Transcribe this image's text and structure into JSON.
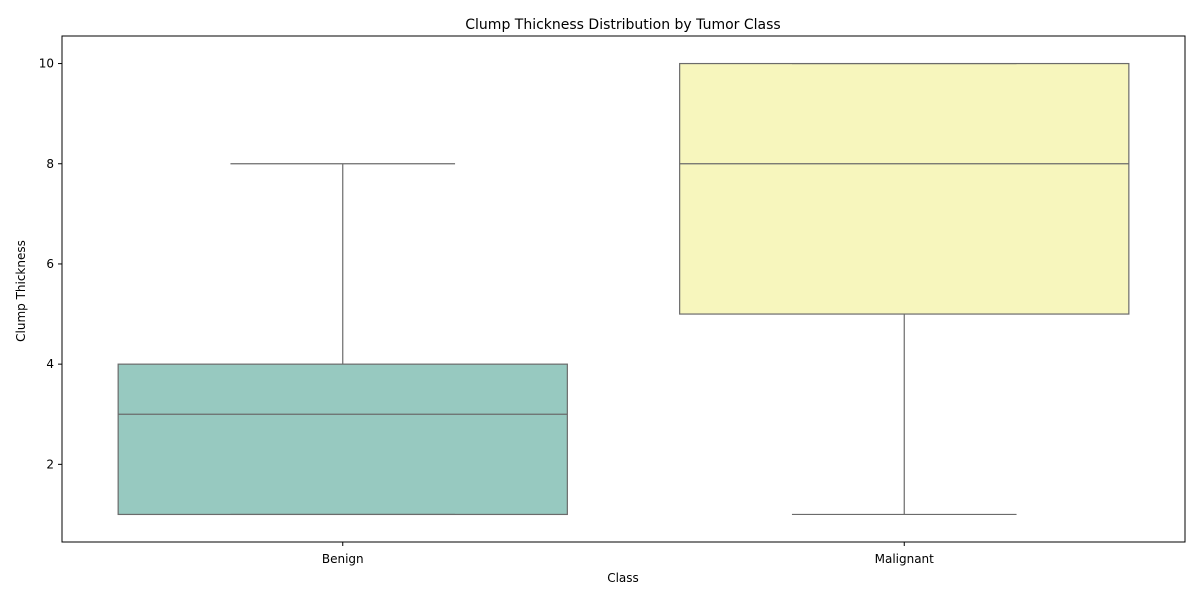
{
  "chart_data": {
    "type": "box",
    "title": "Clump Thickness Distribution by Tumor Class",
    "xlabel": "Class",
    "ylabel": "Clump Thickness",
    "ylim": [
      0.45,
      10.55
    ],
    "yticks": [
      2,
      4,
      6,
      8,
      10
    ],
    "grid": false,
    "legend": "none",
    "categories": [
      "Benign",
      "Malignant"
    ],
    "boxes": [
      {
        "category": "Benign",
        "whisker_low": 1,
        "q1": 1,
        "median": 3,
        "q3": 4,
        "whisker_high": 8,
        "color": "#97c9c0"
      },
      {
        "category": "Malignant",
        "whisker_low": 1,
        "q1": 5,
        "median": 8,
        "q3": 10,
        "whisker_high": 10,
        "color": "#f7f6bd"
      }
    ],
    "line_color": "#6b6b6b"
  }
}
